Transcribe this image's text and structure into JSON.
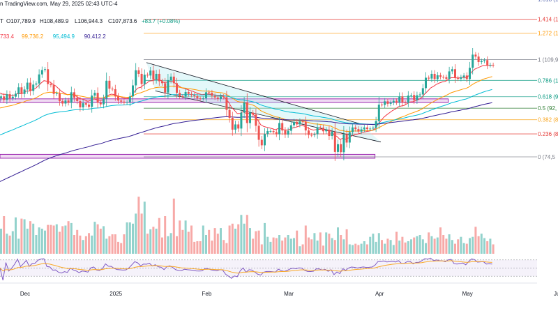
{
  "header": {
    "source": "n TradingView.com, May 29, 2025 02:43 UTC-4",
    "ohlc_prefix": "T",
    "open": "O107,789.9",
    "high": "H108,489.9",
    "low": "L106,944.3",
    "close": "C107,873.6",
    "change": "+83.7 (+0.08%)"
  },
  "ma_values": [
    {
      "text": "733.4",
      "color": "#f23645"
    },
    {
      "text": "99,736.2",
      "color": "#ff9800"
    },
    {
      "text": "95,494.9",
      "color": "#00bcd4"
    },
    {
      "text": "90,412.2",
      "color": "#311b92"
    }
  ],
  "fib_levels": [
    {
      "ratio": 1.618,
      "label": "1.618 (1",
      "color": "#5b6bb0"
    },
    {
      "ratio": 1.414,
      "label": "1.414 (1",
      "color": "#e53935"
    },
    {
      "ratio": 1.272,
      "label": "1.272 (1",
      "color": "#ff9800"
    },
    {
      "ratio": 1,
      "label": "1 (109,9",
      "color": "#787b86"
    },
    {
      "ratio": 0.786,
      "label": "0.786 (1",
      "color": "#089981"
    },
    {
      "ratio": 0.618,
      "label": "0.618 (9",
      "color": "#089981"
    },
    {
      "ratio": 0.5,
      "label": "0.5 (92,",
      "color": "#2e7d32"
    },
    {
      "ratio": 0.382,
      "label": "0.382 (8",
      "color": "#f9a825"
    },
    {
      "ratio": 0.236,
      "label": "0.236 (8",
      "color": "#e53935"
    },
    {
      "ratio": 0,
      "label": "0 (74,5",
      "color": "#787b86"
    }
  ],
  "chart_data": {
    "type": "candlestick",
    "price_range": [
      58000,
      126000
    ],
    "x_labels": [
      {
        "label": "Dec",
        "day": 0
      },
      {
        "label": "2025",
        "day": 31
      },
      {
        "label": "Feb",
        "day": 62
      },
      {
        "label": "Mar",
        "day": 90
      },
      {
        "label": "Apr",
        "day": 121
      },
      {
        "label": "May",
        "day": 151
      },
      {
        "label": "Jun",
        "day": 182
      }
    ],
    "grid": false,
    "closes": [
      96500,
      95200,
      97300,
      95800,
      96400,
      97500,
      99800,
      97400,
      99000,
      101500,
      98500,
      100800,
      101200,
      104500,
      106100,
      106400,
      101000,
      100600,
      97400,
      97600,
      94800,
      93900,
      95000,
      94200,
      98000,
      96000,
      94800,
      92500,
      94000,
      93500,
      92700,
      96800,
      97800,
      94200,
      93600,
      95700,
      102200,
      99300,
      99100,
      96500,
      95000,
      94600,
      94200,
      94400,
      96500,
      100500,
      106000,
      104700,
      101000,
      104400,
      104100,
      105900,
      102600,
      104700,
      102000,
      101300,
      97900,
      102400,
      103700,
      101300,
      97800,
      96600,
      96500,
      98100,
      97400,
      97000,
      96600,
      95800,
      95700,
      95800,
      98000,
      97800,
      96700,
      96100,
      95600,
      96500,
      96200,
      91600,
      88700,
      84400,
      86300,
      84800,
      90600,
      94300,
      86800,
      90600,
      89900,
      85800,
      80700,
      78700,
      82800,
      83900,
      83900,
      83500,
      82700,
      86800,
      84100,
      82600,
      84000,
      86000,
      87200,
      86300,
      87400,
      87300,
      84100,
      82500,
      82400,
      82700,
      85200,
      85100,
      83800,
      84400,
      82100,
      83700,
      76300,
      79100,
      76200,
      82700,
      79700,
      83500,
      85200,
      84600,
      83700,
      84500,
      85200,
      84600,
      84800,
      85100,
      87500,
      93500,
      93400,
      94700,
      93800,
      94200,
      94900,
      94300,
      96500,
      94300,
      94200,
      96800,
      97000,
      95100,
      96900,
      97200,
      99500,
      103300,
      103000,
      104700,
      102800,
      104200,
      103600,
      103500,
      102900,
      105600,
      106400,
      103200,
      102900,
      103500,
      104100,
      102800,
      106900,
      111700,
      111000,
      109000,
      109400,
      109700,
      107800,
      108000,
      107800
    ],
    "bands": [
      {
        "from_day": 0,
        "to_day": 153,
        "low": 94300,
        "high": 95600
      },
      {
        "from_day": 0,
        "to_day": 128,
        "low": 74000,
        "high": 75400
      }
    ],
    "channel": {
      "upper": [
        {
          "day": 50,
          "price": 108800
        },
        {
          "day": 123,
          "price": 86500
        }
      ],
      "lower": [
        {
          "day": 53,
          "price": 98500
        },
        {
          "day": 130,
          "price": 79900
        }
      ]
    },
    "volume_range": [
      0,
      100
    ],
    "volume": [
      40,
      60,
      32,
      29,
      36,
      58,
      24,
      56,
      55,
      40,
      52,
      48,
      30,
      42,
      40,
      37,
      46,
      46,
      45,
      47,
      35,
      44,
      45,
      52,
      49,
      30,
      38,
      29,
      22,
      28,
      33,
      29,
      51,
      47,
      40,
      44,
      24,
      28,
      31,
      31,
      19,
      17,
      31,
      50,
      50,
      48,
      64,
      91,
      64,
      83,
      32,
      39,
      43,
      40,
      57,
      26,
      60,
      28,
      33,
      88,
      28,
      53,
      38,
      53,
      35,
      45,
      19,
      20,
      20,
      45,
      30,
      38,
      21,
      41,
      32,
      41,
      22,
      17,
      45,
      48,
      40,
      47,
      62,
      48,
      62,
      41,
      24,
      36,
      37,
      15,
      49,
      27,
      19,
      26,
      25,
      30,
      21,
      26,
      30,
      24,
      25,
      37,
      12,
      15,
      45,
      26,
      23,
      33,
      21,
      34,
      13,
      34,
      32,
      25,
      22,
      42,
      30,
      23,
      39,
      15,
      14,
      16,
      14,
      16,
      20,
      15,
      27,
      32,
      19,
      33,
      22,
      16,
      24,
      22,
      14,
      35,
      21,
      27,
      18,
      20,
      23,
      26,
      28,
      30,
      23,
      17,
      34,
      28,
      24,
      26,
      42,
      30,
      24,
      31,
      22,
      16,
      23,
      27,
      17,
      16,
      25,
      27,
      43,
      28,
      32,
      25,
      20,
      24,
      15
    ],
    "rsi_range": [
      20,
      80
    ]
  }
}
